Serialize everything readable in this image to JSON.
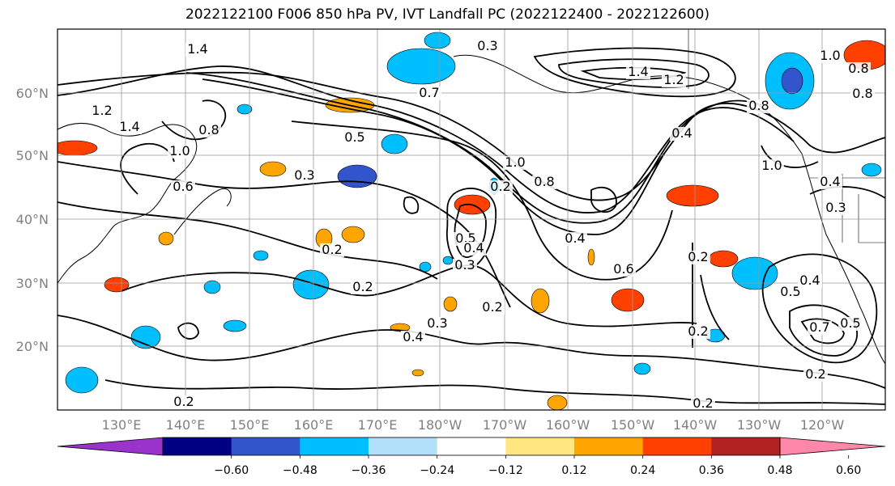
{
  "title": "2022122100 F006 850 hPa PV, IVT Landfall PC (2022122400 - 2022122600)",
  "lat_ticks": [
    "60°N",
    "50°N",
    "40°N",
    "30°N",
    "20°N"
  ],
  "lon_ticks": [
    "130°E",
    "140°E",
    "150°E",
    "160°E",
    "170°E",
    "180°W",
    "170°W",
    "160°W",
    "150°W",
    "140°W",
    "130°W",
    "120°W"
  ],
  "colorbar": {
    "colors": [
      "#9933cc",
      "#000080",
      "#3355cc",
      "#00bfff",
      "#b0e0fa",
      "#ffffff",
      "#ffe680",
      "#ffa500",
      "#ff4000",
      "#b22222",
      "#ff88aa"
    ],
    "tick_labels": [
      "−0.60",
      "−0.48",
      "−0.36",
      "−0.24",
      "−0.12",
      "0.12",
      "0.24",
      "0.36",
      "0.48",
      "0.60"
    ]
  },
  "contour_labels": [
    "1.4",
    "1.2",
    "1.4",
    "0.8",
    "1.0",
    "0.6",
    "0.3",
    "0.5",
    "0.7",
    "0.3",
    "0.2",
    "0.2",
    "0.5",
    "0.4",
    "0.3",
    "0.2",
    "0.4",
    "0.3",
    "0.2",
    "1.0",
    "0.8",
    "0.4",
    "0.6",
    "0.2",
    "1.4",
    "1.2",
    "0.4",
    "0.8",
    "1.0",
    "0.2",
    "0.5",
    "0.4",
    "0.7",
    "0.5",
    "0.2",
    "0.4",
    "0.3",
    "1.0",
    "0.8",
    "0.8",
    "0.2",
    "0.2"
  ]
}
